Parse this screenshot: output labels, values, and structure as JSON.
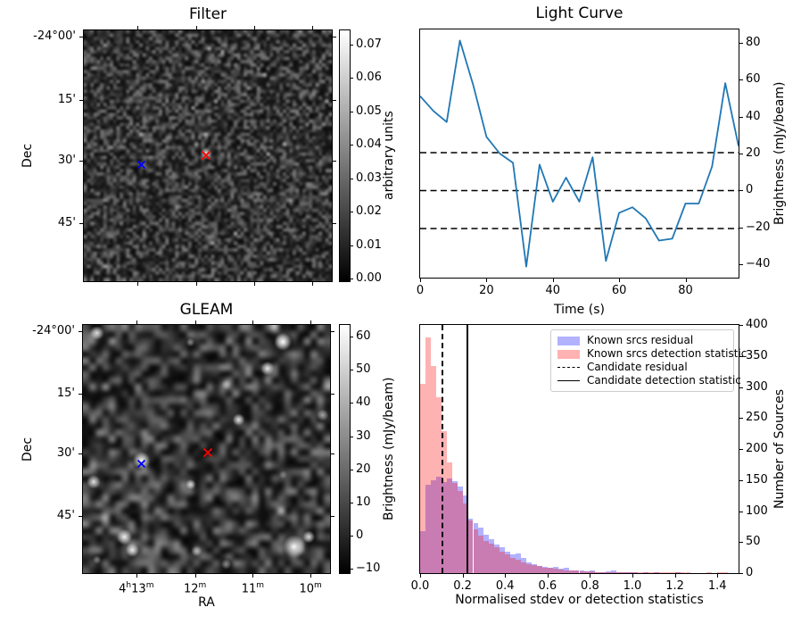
{
  "figure": {
    "background": "#ffffff"
  },
  "colors": {
    "light_curve_line": "#1f77b4",
    "candidate_marker": "#ff0000",
    "comparison_marker": "#0000ff",
    "residual_hist": "rgba(0,0,255,0.3)",
    "detection_hist": "rgba(255,0,0,0.3)"
  },
  "chart_data": [
    {
      "id": "filter",
      "type": "heatmap",
      "title": "Filter",
      "xlabel": "",
      "ylabel": "Dec",
      "xtick_pos": [
        0.218,
        0.454,
        0.686,
        0.918
      ],
      "xtick_labels": [
        "",
        "",
        "",
        ""
      ],
      "ytick_pos": [
        0.028,
        0.279,
        0.519,
        0.767
      ],
      "ytick_labels": [
        "-24°00'",
        "15'",
        "30'",
        "45'"
      ],
      "colorbar": {
        "label": "arbitrary units",
        "tick_values": [
          0,
          0.01,
          0.02,
          0.03,
          0.04,
          0.05,
          0.06,
          0.07
        ],
        "tick_labels": [
          "0.00",
          "0.01",
          "0.02",
          "0.03",
          "0.04",
          "0.05",
          "0.06",
          "0.07"
        ],
        "bar_range": [
          -0.001,
          0.0745
        ]
      },
      "markers": [
        {
          "name": "candidate-position",
          "color": "#ff0000",
          "x": 0.493,
          "y": 0.487,
          "size": 12
        },
        {
          "name": "comparison-position",
          "color": "#0000ff",
          "x": 0.232,
          "y": 0.52,
          "size": 11
        }
      ],
      "sources": [
        {
          "x": 0.493,
          "y": 0.49,
          "r": 7,
          "b": 0.85
        }
      ],
      "noise": {
        "seed": 11,
        "cells": 76,
        "base": 18,
        "contrast": 105,
        "spot_chance": 0.02,
        "spot_boost": 55
      }
    },
    {
      "id": "light_curve",
      "type": "line",
      "title": "Light Curve",
      "xlabel": "Time (s)",
      "ylabel": "Brightness (mJy/beam)",
      "x": [
        0,
        4,
        8,
        12,
        16,
        20,
        24,
        28,
        32,
        36,
        40,
        44,
        48,
        52,
        56,
        60,
        64,
        68,
        72,
        76,
        80,
        84,
        88,
        92,
        96
      ],
      "y": [
        51,
        43,
        37,
        81,
        57,
        29,
        20,
        15,
        -41,
        14,
        -6,
        7,
        -6,
        18,
        -38,
        -12,
        -9,
        -15,
        -27,
        -26,
        -7,
        -7,
        13,
        58,
        24
      ],
      "xlim": [
        0,
        96
      ],
      "ylim": [
        -47,
        87
      ],
      "xticks": [
        0,
        20,
        40,
        60,
        80
      ],
      "yticks": [
        -40,
        -20,
        0,
        20,
        40,
        60,
        80
      ],
      "hlines": [
        {
          "y": 20.5,
          "style": "dashed"
        },
        {
          "y": 0,
          "style": "dashed"
        },
        {
          "y": -20.5,
          "style": "dashed"
        }
      ],
      "line_color": "#1f77b4"
    },
    {
      "id": "gleam",
      "type": "heatmap",
      "title": "GLEAM",
      "xlabel": "RA",
      "ylabel": "Dec",
      "xtick_pos": [
        0.218,
        0.454,
        0.686,
        0.918
      ],
      "xtick_labels": [
        "4h13m",
        "12m",
        "11m",
        "10m"
      ],
      "ytick_pos": [
        0.028,
        0.279,
        0.519,
        0.767
      ],
      "ytick_labels": [
        "-24°00'",
        "15'",
        "30'",
        "45'"
      ],
      "colorbar": {
        "label": "Brightness (mJy/beam)",
        "tick_values": [
          -10,
          0,
          10,
          20,
          30,
          40,
          50,
          60
        ],
        "tick_labels": [
          "−10",
          "0",
          "10",
          "20",
          "30",
          "40",
          "50",
          "60"
        ],
        "bar_range": [
          -11.6,
          63.8
        ]
      },
      "markers": [
        {
          "name": "candidate-position",
          "color": "#ff0000",
          "x": 0.504,
          "y": 0.504,
          "size": 12
        },
        {
          "name": "comparison-position",
          "color": "#0000ff",
          "x": 0.236,
          "y": 0.546,
          "size": 11
        }
      ],
      "sources": [
        {
          "x": 0.057,
          "y": 0.032,
          "r": 8,
          "b": 0.85
        },
        {
          "x": 0.435,
          "y": 0.07,
          "r": 5,
          "b": 0.5
        },
        {
          "x": 0.81,
          "y": 0.068,
          "r": 10,
          "b": 1.0
        },
        {
          "x": 0.747,
          "y": 0.175,
          "r": 8,
          "b": 0.95
        },
        {
          "x": 0.58,
          "y": 0.24,
          "r": 6,
          "b": 0.5
        },
        {
          "x": 0.63,
          "y": 0.382,
          "r": 7,
          "b": 0.9
        },
        {
          "x": 0.97,
          "y": 0.364,
          "r": 7,
          "b": 0.6
        },
        {
          "x": 0.236,
          "y": 0.546,
          "r": 10,
          "b": 1.0
        },
        {
          "x": 0.043,
          "y": 0.632,
          "r": 8,
          "b": 0.9
        },
        {
          "x": 0.436,
          "y": 0.643,
          "r": 6,
          "b": 0.85
        },
        {
          "x": 0.81,
          "y": 0.604,
          "r": 5,
          "b": 0.35
        },
        {
          "x": 0.168,
          "y": 0.854,
          "r": 9,
          "b": 0.95
        },
        {
          "x": 0.2,
          "y": 0.907,
          "r": 8,
          "b": 0.95
        },
        {
          "x": 0.46,
          "y": 0.911,
          "r": 6,
          "b": 0.55
        },
        {
          "x": 0.58,
          "y": 0.964,
          "r": 6,
          "b": 0.55
        },
        {
          "x": 0.854,
          "y": 0.893,
          "r": 13,
          "b": 1.0
        },
        {
          "x": 0.914,
          "y": 0.854,
          "r": 7,
          "b": 0.85
        },
        {
          "x": 0.057,
          "y": 0.946,
          "r": 5,
          "b": 0.45
        }
      ],
      "noise": {
        "seed": 5,
        "cells": 38,
        "base": 14,
        "contrast": 120,
        "spot_chance": 0.03,
        "spot_boost": 60
      }
    },
    {
      "id": "histogram",
      "type": "bar",
      "title": "",
      "xlabel": "Normalised stdev or detection statistics",
      "ylabel": "Number of Sources",
      "bin_start": 0,
      "bin_width": 0.025,
      "series": [
        {
          "name": "Known srcs residual",
          "color": "rgba(0,0,255,0.3)",
          "values": [
            68,
            143,
            150,
            155,
            147,
            153,
            148,
            140,
            125,
            88,
            80,
            74,
            62,
            55,
            46,
            42,
            35,
            30,
            32,
            25,
            18,
            15,
            12,
            10,
            9,
            10,
            7,
            8,
            5,
            4,
            5,
            3,
            4,
            2,
            2,
            3,
            4,
            2,
            2,
            1,
            1,
            0,
            2,
            0,
            1,
            0,
            0,
            0,
            1,
            0,
            0,
            0,
            0,
            0,
            0,
            0,
            0,
            0
          ]
        },
        {
          "name": "Known srcs detection statistic",
          "color": "rgba(255,0,0,0.3)",
          "values": [
            305,
            380,
            334,
            284,
            229,
            179,
            145,
            133,
            112,
            85,
            70,
            60,
            52,
            47,
            42,
            35,
            30,
            25,
            21,
            18,
            15,
            13,
            11,
            9,
            8,
            7,
            6,
            5,
            4,
            4,
            3,
            3,
            3,
            2,
            2,
            2,
            2,
            2,
            2,
            1,
            2,
            2,
            1,
            1,
            2,
            1,
            1,
            1,
            2,
            1,
            1,
            0,
            0,
            0,
            1,
            0,
            2,
            2
          ]
        }
      ],
      "vlines": [
        {
          "name": "Candidate residual",
          "x": 0.1,
          "style": "dashed"
        },
        {
          "name": "Candidate detection statistic",
          "x": 0.22,
          "style": "solid"
        }
      ],
      "xlim": [
        0,
        1.5
      ],
      "ylim": [
        0,
        400
      ],
      "xticks": [
        0.0,
        0.2,
        0.4,
        0.6,
        0.8,
        1.0,
        1.2,
        1.4
      ],
      "yticks": [
        0,
        50,
        100,
        150,
        200,
        250,
        300,
        350,
        400
      ],
      "legend_position": "upper right"
    }
  ]
}
